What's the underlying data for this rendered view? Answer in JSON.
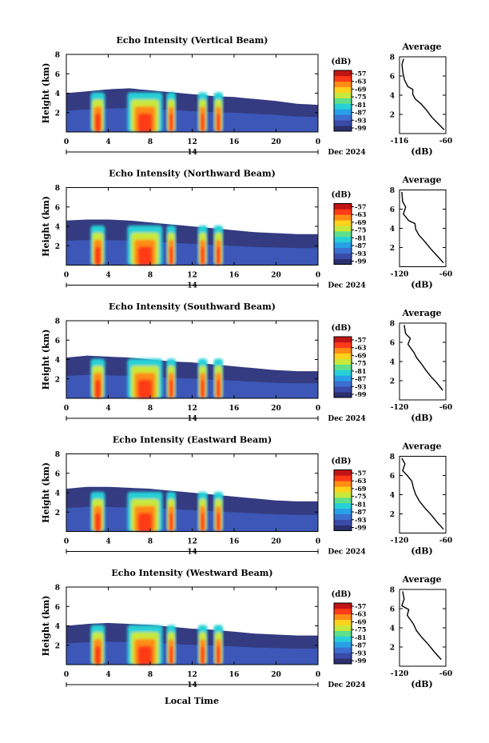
{
  "figure": {
    "xlabel": "Local Time",
    "date_label": "Dec 2024",
    "day_label": "14"
  },
  "colorbar": {
    "unit": "(dB)",
    "ticks": [
      "-57",
      "-63",
      "-69",
      "-75",
      "-81",
      "-87",
      "-93",
      "-99"
    ],
    "colors": [
      "#2a2f6e",
      "#3a4aa8",
      "#3b6fd0",
      "#27a0e8",
      "#27d0d8",
      "#5ee08a",
      "#c8e83a",
      "#ffd21c",
      "#ff8c14",
      "#ff3a18",
      "#c21414"
    ]
  },
  "chart_data": [
    {
      "type": "heatmap",
      "title": "Echo Intensity (Vertical Beam)",
      "ylabel": "Height (km)",
      "xlim": [
        0,
        24
      ],
      "ylim": [
        0,
        8
      ],
      "xticks": [
        "0",
        "4",
        "8",
        "12",
        "16",
        "20",
        "0"
      ],
      "yticks": [
        "2",
        "4",
        "6",
        "8"
      ],
      "echo_top_km": [
        [
          0,
          4.0
        ],
        [
          2,
          4.2
        ],
        [
          4,
          4.4
        ],
        [
          6,
          4.5
        ],
        [
          8,
          4.3
        ],
        [
          10,
          4.1
        ],
        [
          12,
          3.9
        ],
        [
          14,
          3.7
        ],
        [
          16,
          3.6
        ],
        [
          18,
          3.4
        ],
        [
          20,
          3.2
        ],
        [
          22,
          2.9
        ],
        [
          24,
          2.8
        ]
      ],
      "strong_echo_hours": [
        3,
        7.5,
        10,
        13,
        14.5
      ],
      "profile": {
        "title": "Average",
        "xlabel": "(dB)",
        "xlim": [
          -116,
          -60
        ],
        "ylim": [
          0,
          8
        ],
        "xticks": [
          "-116",
          "-60"
        ],
        "yticks": [
          "2",
          "4",
          "6",
          "8"
        ],
        "points": [
          [
            -111,
            7.8
          ],
          [
            -113,
            7.2
          ],
          [
            -112,
            6.4
          ],
          [
            -110,
            5.6
          ],
          [
            -106,
            4.9
          ],
          [
            -100,
            4.6
          ],
          [
            -100,
            4.1
          ],
          [
            -97,
            3.6
          ],
          [
            -90,
            3.1
          ],
          [
            -83,
            2.4
          ],
          [
            -77,
            1.7
          ],
          [
            -70,
            1.1
          ],
          [
            -62,
            0.4
          ]
        ]
      }
    },
    {
      "type": "heatmap",
      "title": "Echo Intensity (Northward Beam)",
      "ylabel": "Height (km)",
      "xlim": [
        0,
        24
      ],
      "ylim": [
        0,
        8
      ],
      "xticks": [
        "0",
        "4",
        "8",
        "12",
        "16",
        "20",
        "0"
      ],
      "yticks": [
        "2",
        "4",
        "6",
        "8"
      ],
      "echo_top_km": [
        [
          0,
          4.6
        ],
        [
          2,
          4.7
        ],
        [
          4,
          4.7
        ],
        [
          6,
          4.6
        ],
        [
          8,
          4.4
        ],
        [
          10,
          4.2
        ],
        [
          12,
          4.0
        ],
        [
          14,
          3.8
        ],
        [
          16,
          3.6
        ],
        [
          18,
          3.4
        ],
        [
          20,
          3.3
        ],
        [
          22,
          3.2
        ],
        [
          24,
          3.2
        ]
      ],
      "strong_echo_hours": [
        3,
        7.5,
        10,
        13,
        14.5
      ],
      "profile": {
        "title": "Average",
        "xlabel": "(dB)",
        "xlim": [
          -120,
          -60
        ],
        "ylim": [
          0,
          8
        ],
        "xticks": [
          "-120",
          "-60"
        ],
        "yticks": [
          "2",
          "4",
          "6",
          "8"
        ],
        "points": [
          [
            -117,
            7.8
          ],
          [
            -116,
            6.8
          ],
          [
            -112,
            6.2
          ],
          [
            -115,
            5.5
          ],
          [
            -108,
            4.8
          ],
          [
            -100,
            4.5
          ],
          [
            -99,
            3.9
          ],
          [
            -95,
            3.3
          ],
          [
            -87,
            2.6
          ],
          [
            -80,
            1.9
          ],
          [
            -72,
            1.2
          ],
          [
            -63,
            0.4
          ]
        ]
      }
    },
    {
      "type": "heatmap",
      "title": "Echo Intensity (Southward Beam)",
      "ylabel": "Height (km)",
      "xlim": [
        0,
        24
      ],
      "ylim": [
        0,
        8
      ],
      "xticks": [
        "0",
        "4",
        "8",
        "12",
        "16",
        "20",
        "0"
      ],
      "yticks": [
        "2",
        "4",
        "6",
        "8"
      ],
      "echo_top_km": [
        [
          0,
          4.2
        ],
        [
          2,
          4.4
        ],
        [
          4,
          4.3
        ],
        [
          6,
          4.2
        ],
        [
          8,
          4.0
        ],
        [
          10,
          3.8
        ],
        [
          12,
          3.7
        ],
        [
          14,
          3.5
        ],
        [
          16,
          3.3
        ],
        [
          18,
          3.1
        ],
        [
          20,
          2.9
        ],
        [
          22,
          2.8
        ],
        [
          24,
          2.8
        ]
      ],
      "strong_echo_hours": [
        3,
        7.5,
        10,
        13,
        14.5
      ],
      "profile": {
        "title": "Average",
        "xlabel": "(dB)",
        "xlim": [
          -120,
          -60
        ],
        "ylim": [
          0,
          8
        ],
        "xticks": [
          "-120",
          "-60"
        ],
        "yticks": [
          "2",
          "4",
          "6",
          "8"
        ],
        "points": [
          [
            -114,
            7.8
          ],
          [
            -112,
            6.9
          ],
          [
            -106,
            6.4
          ],
          [
            -109,
            5.8
          ],
          [
            -101,
            4.9
          ],
          [
            -98,
            4.4
          ],
          [
            -92,
            3.8
          ],
          [
            -86,
            3.1
          ],
          [
            -79,
            2.4
          ],
          [
            -72,
            1.8
          ],
          [
            -64,
            1.0
          ]
        ]
      }
    },
    {
      "type": "heatmap",
      "title": "Echo Intensity (Eastward Beam)",
      "ylabel": "Height (km)",
      "xlim": [
        0,
        24
      ],
      "ylim": [
        0,
        8
      ],
      "xticks": [
        "0",
        "4",
        "8",
        "12",
        "16",
        "20",
        "0"
      ],
      "yticks": [
        "2",
        "4",
        "6",
        "8"
      ],
      "echo_top_km": [
        [
          0,
          4.4
        ],
        [
          2,
          4.6
        ],
        [
          4,
          4.6
        ],
        [
          6,
          4.5
        ],
        [
          8,
          4.4
        ],
        [
          10,
          4.2
        ],
        [
          12,
          4.0
        ],
        [
          14,
          3.8
        ],
        [
          16,
          3.6
        ],
        [
          18,
          3.4
        ],
        [
          20,
          3.2
        ],
        [
          22,
          3.1
        ],
        [
          24,
          3.1
        ]
      ],
      "strong_echo_hours": [
        3,
        7.5,
        10,
        13,
        14.5
      ],
      "profile": {
        "title": "Average",
        "xlabel": "(dB)",
        "xlim": [
          -120,
          -60
        ],
        "ylim": [
          0,
          8
        ],
        "xticks": [
          "-120",
          "-60"
        ],
        "yticks": [
          "2",
          "4",
          "6",
          "8"
        ],
        "points": [
          [
            -117,
            7.8
          ],
          [
            -113,
            7.2
          ],
          [
            -116,
            6.5
          ],
          [
            -110,
            6.0
          ],
          [
            -104,
            5.4
          ],
          [
            -102,
            4.7
          ],
          [
            -99,
            4.0
          ],
          [
            -94,
            3.3
          ],
          [
            -87,
            2.6
          ],
          [
            -79,
            1.9
          ],
          [
            -71,
            1.1
          ],
          [
            -63,
            0.4
          ]
        ]
      }
    },
    {
      "type": "heatmap",
      "title": "Echo Intensity (Westward Beam)",
      "ylabel": "Height (km)",
      "xlim": [
        0,
        24
      ],
      "ylim": [
        0,
        8
      ],
      "xticks": [
        "0",
        "4",
        "8",
        "12",
        "16",
        "20",
        "0"
      ],
      "yticks": [
        "2",
        "4",
        "6",
        "8"
      ],
      "echo_top_km": [
        [
          0,
          4.0
        ],
        [
          2,
          4.2
        ],
        [
          4,
          4.3
        ],
        [
          6,
          4.2
        ],
        [
          8,
          4.1
        ],
        [
          10,
          3.9
        ],
        [
          12,
          3.7
        ],
        [
          14,
          3.6
        ],
        [
          16,
          3.4
        ],
        [
          18,
          3.2
        ],
        [
          20,
          3.1
        ],
        [
          22,
          3.0
        ],
        [
          24,
          3.0
        ]
      ],
      "strong_echo_hours": [
        3,
        7.5,
        10,
        13,
        14.5
      ],
      "profile": {
        "title": "Average",
        "xlabel": "(dB)",
        "xlim": [
          -120,
          -60
        ],
        "ylim": [
          0,
          8
        ],
        "xticks": [
          "-120",
          "-60"
        ],
        "yticks": [
          "2",
          "4",
          "6",
          "8"
        ],
        "points": [
          [
            -116,
            7.8
          ],
          [
            -114,
            7.0
          ],
          [
            -117,
            6.3
          ],
          [
            -108,
            5.9
          ],
          [
            -110,
            5.3
          ],
          [
            -102,
            4.4
          ],
          [
            -98,
            3.7
          ],
          [
            -91,
            3.0
          ],
          [
            -83,
            2.3
          ],
          [
            -75,
            1.5
          ],
          [
            -66,
            0.7
          ]
        ]
      }
    }
  ]
}
